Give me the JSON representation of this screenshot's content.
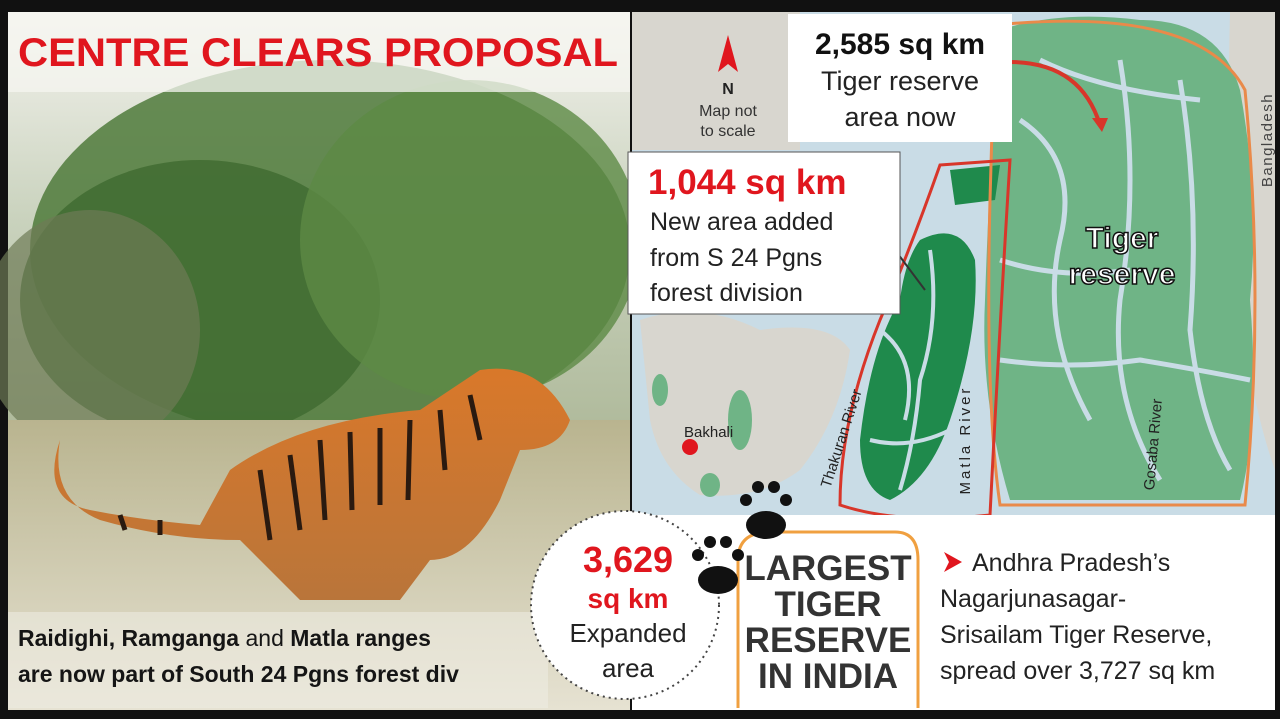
{
  "title": "CENTRE CLEARS PROPOSAL",
  "caption": [
    [
      {
        "text": "Raidighi, Ramganga",
        "bold": true
      },
      {
        "text": " and ",
        "bold": false
      },
      {
        "text": "Matla ranges",
        "bold": true
      }
    ],
    [
      {
        "text": "are now part of South 24 Pgns forest div",
        "bold": true
      }
    ]
  ],
  "map": {
    "north": "N",
    "scale_note": [
      "Map not",
      "to scale"
    ],
    "reserve_callout": {
      "area": "2,585 sq km",
      "lines": [
        "Tiger reserve",
        "area now"
      ]
    },
    "new_area_callout": {
      "area": "1,044 sq km",
      "lines": [
        "New area added",
        "from S 24 Pgns",
        "forest division"
      ]
    },
    "reserve_label": [
      "Tiger",
      "reserve"
    ],
    "country": "Bangladesh",
    "town": "Bakhali",
    "rivers": [
      "Thakuran River",
      "Matla River",
      "Gosaba River"
    ]
  },
  "expanded": {
    "area": "3,629",
    "unit": "sq km",
    "lines": [
      "Expanded",
      "area"
    ]
  },
  "headline": [
    "LARGEST",
    "TIGER",
    "RESERVE",
    "IN INDIA"
  ],
  "comparison": [
    "Andhra Pradesh’s",
    "Nagarjunasagar-",
    "Srisailam Tiger Reserve,",
    "spread over 3,727 sq km"
  ]
}
